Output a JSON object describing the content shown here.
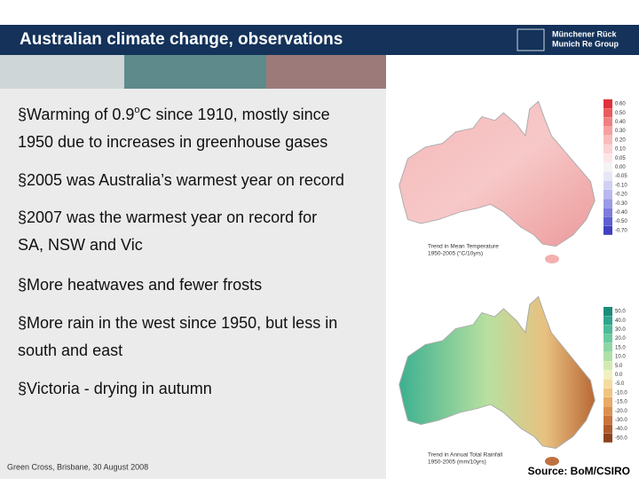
{
  "header": {
    "title": "Australian climate change, observations",
    "logo_line1": "Münchener Rück",
    "logo_line2": "Munich Re Group"
  },
  "bullet_marker": "§",
  "bullets": [
    {
      "lines": [
        [
          "Warming of 0.9",
          "o",
          "C since 1910, mostly since"
        ],
        [
          "1950 due to increases in greenhouse gases"
        ]
      ]
    },
    {
      "lines": [
        [
          "2005 was Australia’s warmest year on record"
        ]
      ]
    },
    {
      "lines": [
        [
          "2007 was the warmest year on record for"
        ],
        [
          "SA, NSW and Vic"
        ]
      ]
    },
    {
      "lines": [
        [
          "More heatwaves and fewer frosts"
        ]
      ]
    },
    {
      "lines": [
        [
          "More rain in the west since 1950, but less in"
        ],
        [
          "south and east"
        ]
      ]
    },
    {
      "lines": [
        [
          "Victoria - drying in autumn"
        ]
      ]
    }
  ],
  "maps": [
    {
      "caption": [
        "Trend in Mean Temperature",
        "1950-2005 (°C/10yrs)"
      ],
      "legend": [
        "0.60",
        "0.50",
        "0.40",
        "0.30",
        "0.20",
        "0.10",
        "0.05",
        "0.00",
        "-0.05",
        "-0.10",
        "-0.20",
        "-0.30",
        "-0.40",
        "-0.50",
        "-0.70"
      ],
      "colors": [
        "#e0303a",
        "#ea5a5e",
        "#f07f80",
        "#f5a0a0",
        "#f8bcbc",
        "#fbd3d3",
        "#fde6e6",
        "#f4f4f4",
        "#e6e6f6",
        "#d0d0f2",
        "#b8b8ee",
        "#9a9ae6",
        "#7c7cdc",
        "#5e5ed2",
        "#4040c0"
      ]
    },
    {
      "caption": [
        "Trend in Annual Total Rainfall",
        "1950-2005 (mm/10yrs)"
      ],
      "legend": [
        "50.0",
        "40.0",
        "30.0",
        "20.0",
        "15.0",
        "10.0",
        "5.0",
        "0.0",
        "-5.0",
        "-10.0",
        "-15.0",
        "-20.0",
        "-30.0",
        "-40.0",
        "-50.0"
      ],
      "colors": [
        "#1a8c7a",
        "#2fa58c",
        "#4cba98",
        "#6ccaa0",
        "#8ed6a4",
        "#b0e0a8",
        "#d2eab0",
        "#f2f0c0",
        "#f4dca0",
        "#f0c480",
        "#e8aa66",
        "#dc9050",
        "#c8743c",
        "#b05a2c",
        "#8c421e"
      ]
    }
  ],
  "footer": {
    "left": "Green Cross, Brisbane, 30 August 2008",
    "source": "Source: BoM/CSIRO"
  }
}
